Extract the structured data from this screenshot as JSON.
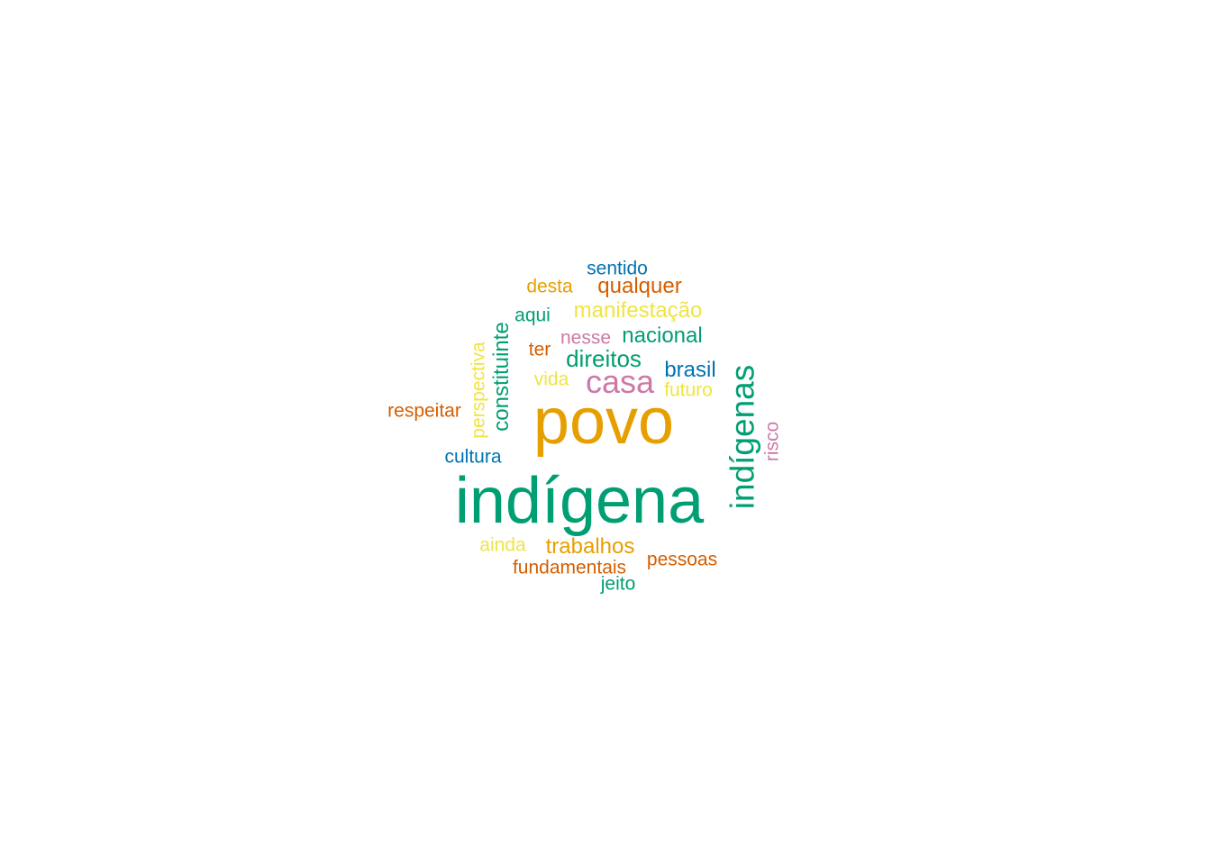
{
  "colors": {
    "orange": "#E69F00",
    "green": "#009E73",
    "pink": "#CC79A7",
    "blue": "#0072B2",
    "yellow": "#F0E442",
    "red": "#D55E00"
  },
  "words": {
    "indigena": "indígena",
    "povo": "povo",
    "indigenas": "indígenas",
    "casa": "casa",
    "direitos": "direitos",
    "nacional": "nacional",
    "qualquer": "qualquer",
    "manifestacao": "manifestação",
    "trabalhos": "trabalhos",
    "brasil": "brasil",
    "constituinte": "constituinte",
    "sentido": "sentido",
    "desta": "desta",
    "aqui": "aqui",
    "ter": "ter",
    "nesse": "nesse",
    "vida": "vida",
    "futuro": "futuro",
    "respeitar": "respeitar",
    "perspectiva": "perspectiva",
    "cultura": "cultura",
    "risco": "risco",
    "ainda": "ainda",
    "fundamentais": "fundamentais",
    "pessoas": "pessoas",
    "jeito": "jeito"
  }
}
